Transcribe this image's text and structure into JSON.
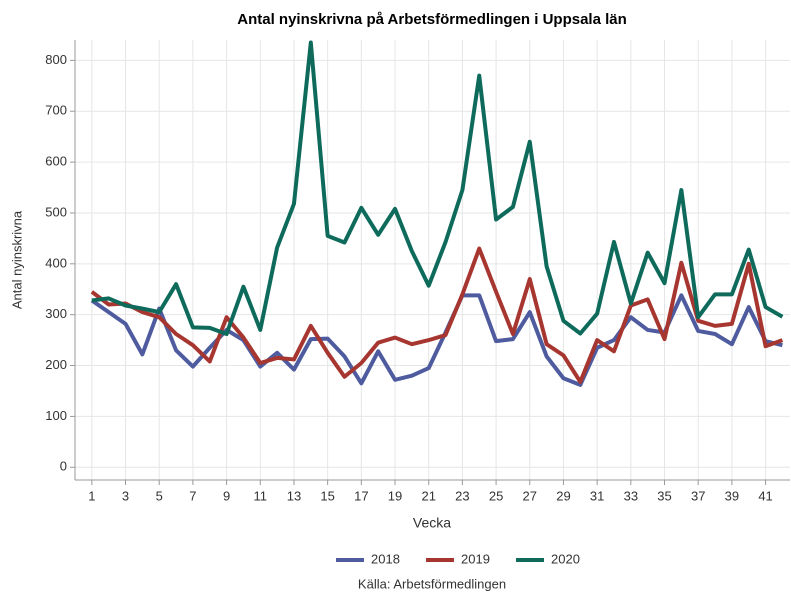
{
  "chart_data": {
    "type": "line",
    "title": "Antal nyinskrivna på Arbetsförmedlingen i Uppsala län",
    "x_label": "Vecka",
    "y_label": "Antal nyinskrivna",
    "source": "Källa: Arbetsförmedlingen",
    "x": [
      1,
      2,
      3,
      4,
      5,
      6,
      7,
      8,
      9,
      10,
      11,
      12,
      13,
      14,
      15,
      16,
      17,
      18,
      19,
      20,
      21,
      22,
      23,
      24,
      25,
      26,
      27,
      28,
      29,
      30,
      31,
      32,
      33,
      34,
      35,
      36,
      37,
      38,
      39,
      40,
      41,
      42
    ],
    "series": [
      {
        "name": "2018",
        "color": "#4f5b9f",
        "values": [
          328,
          305,
          282,
          222,
          312,
          230,
          198,
          235,
          270,
          250,
          198,
          225,
          192,
          252,
          253,
          218,
          165,
          228,
          172,
          180,
          195,
          265,
          338,
          338,
          248,
          252,
          305,
          218,
          175,
          162,
          235,
          250,
          295,
          270,
          265,
          338,
          268,
          262,
          242,
          315,
          248,
          240
        ]
      },
      {
        "name": "2019",
        "color": "#a6362f",
        "values": [
          345,
          320,
          322,
          305,
          295,
          262,
          240,
          208,
          295,
          255,
          205,
          215,
          212,
          278,
          225,
          178,
          205,
          245,
          255,
          242,
          250,
          260,
          340,
          430,
          345,
          262,
          370,
          242,
          220,
          168,
          250,
          228,
          318,
          330,
          252,
          402,
          288,
          278,
          282,
          400,
          238,
          250
        ]
      },
      {
        "name": "2020",
        "color": "#0e6b5c",
        "values": [
          328,
          332,
          318,
          312,
          305,
          360,
          275,
          274,
          262,
          355,
          270,
          432,
          518,
          835,
          455,
          442,
          510,
          457,
          508,
          425,
          357,
          443,
          545,
          770,
          487,
          512,
          640,
          395,
          288,
          263,
          302,
          443,
          322,
          422,
          362,
          545,
          295,
          340,
          340,
          428,
          315,
          296
        ]
      }
    ],
    "xlim": [
      0,
      42.45
    ],
    "xticks": [
      1,
      3,
      5,
      7,
      9,
      11,
      13,
      15,
      17,
      19,
      21,
      23,
      25,
      27,
      29,
      31,
      33,
      35,
      37,
      39,
      41
    ],
    "ylim": [
      -25,
      840
    ],
    "yticks": [
      0,
      100,
      200,
      300,
      400,
      500,
      600,
      700,
      800
    ],
    "grid": true,
    "legend": "bottom"
  }
}
